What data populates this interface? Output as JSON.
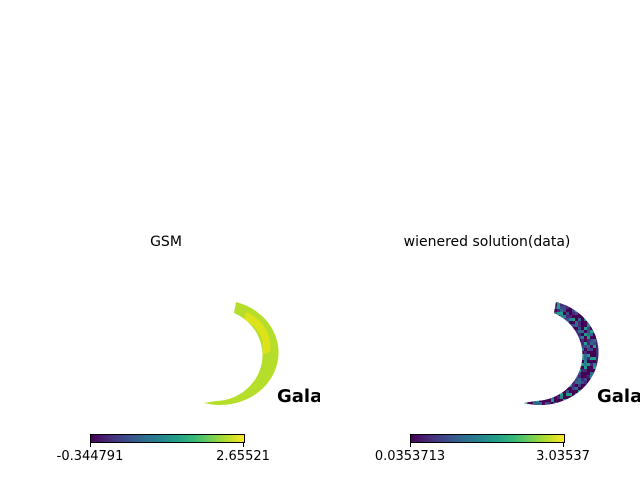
{
  "chart_data": [
    {
      "type": "heatmap",
      "title": "GSM",
      "coordinate_label": "Galac",
      "colormap": "viridis",
      "colorbar": {
        "min": -0.344791,
        "max": 2.65521,
        "min_label": "-0.344791",
        "max_label": "2.65521"
      },
      "map_color_level": 0.88
    },
    {
      "type": "heatmap",
      "title": "wienered solution(data)",
      "coordinate_label": "Gala",
      "colormap": "viridis",
      "colorbar": {
        "min": 0.0353713,
        "max": 3.03537,
        "min_label": "0.0353713",
        "max_label": "3.03537"
      },
      "map_color_level": "noisy"
    }
  ],
  "colors": {
    "viridis": [
      "#440154",
      "#482878",
      "#3e4989",
      "#31688e",
      "#26828e",
      "#1f9e89",
      "#35b779",
      "#6ece58",
      "#b5de2b",
      "#fde725"
    ]
  }
}
